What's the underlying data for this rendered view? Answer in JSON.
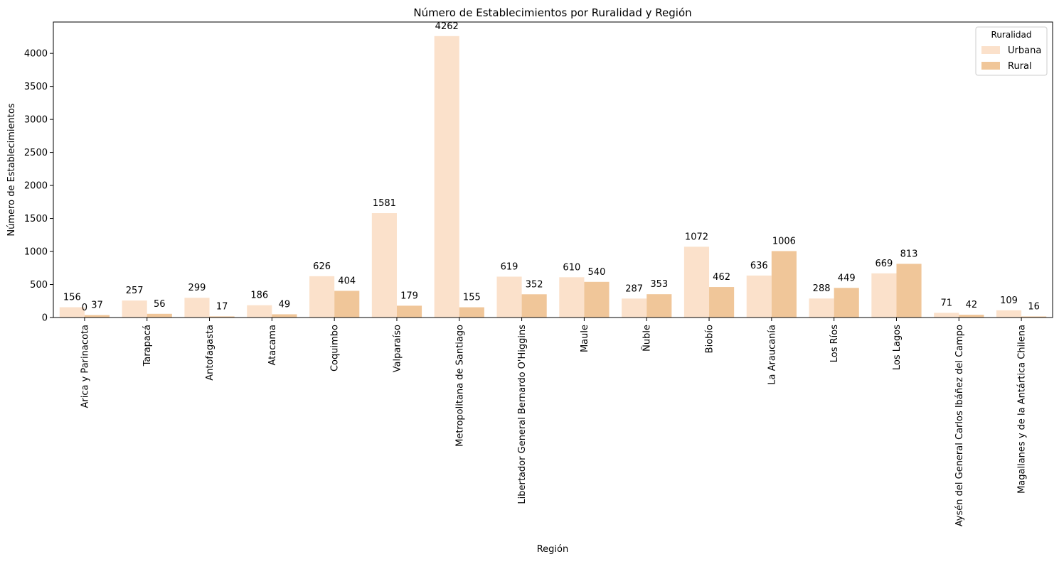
{
  "chart_data": {
    "type": "bar",
    "title": "Número de Establecimientos por Ruralidad y Región",
    "xlabel": "Región",
    "ylabel": "Número de Establecimientos",
    "ylim": [
      0,
      4475
    ],
    "yticks": [
      0,
      500,
      1000,
      1500,
      2000,
      2500,
      3000,
      3500,
      4000
    ],
    "grid": false,
    "legend": {
      "title": "Ruralidad",
      "placement": "top-right"
    },
    "categories": [
      "Arica y Parinacota",
      "Tarapacá",
      "Antofagasta",
      "Atacama",
      "Coquimbo",
      "Valparaíso",
      "Metropolitana de Santiago",
      "Libertador General Bernardo O'Higgins",
      "Maule",
      "Ñuble",
      "Biobío",
      "La Araucanía",
      "Los Ríos",
      "Los Lagos",
      "Aysén del General Carlos Ibáñez del Campo",
      "Magallanes y de la Antártica Chilena"
    ],
    "series": [
      {
        "name": "Urbana",
        "color": "#fbe1cb",
        "values": [
          156,
          257,
          299,
          186,
          626,
          1581,
          4262,
          619,
          610,
          287,
          1072,
          636,
          288,
          669,
          71,
          109
        ]
      },
      {
        "name": "Rural",
        "color": "#f0c699",
        "values": [
          37,
          56,
          17,
          49,
          404,
          179,
          155,
          352,
          540,
          353,
          462,
          1006,
          449,
          813,
          42,
          16
        ]
      }
    ],
    "annotations": [
      {
        "text": "0",
        "category": "Arica y Parinacota",
        "value": 0
      }
    ]
  }
}
